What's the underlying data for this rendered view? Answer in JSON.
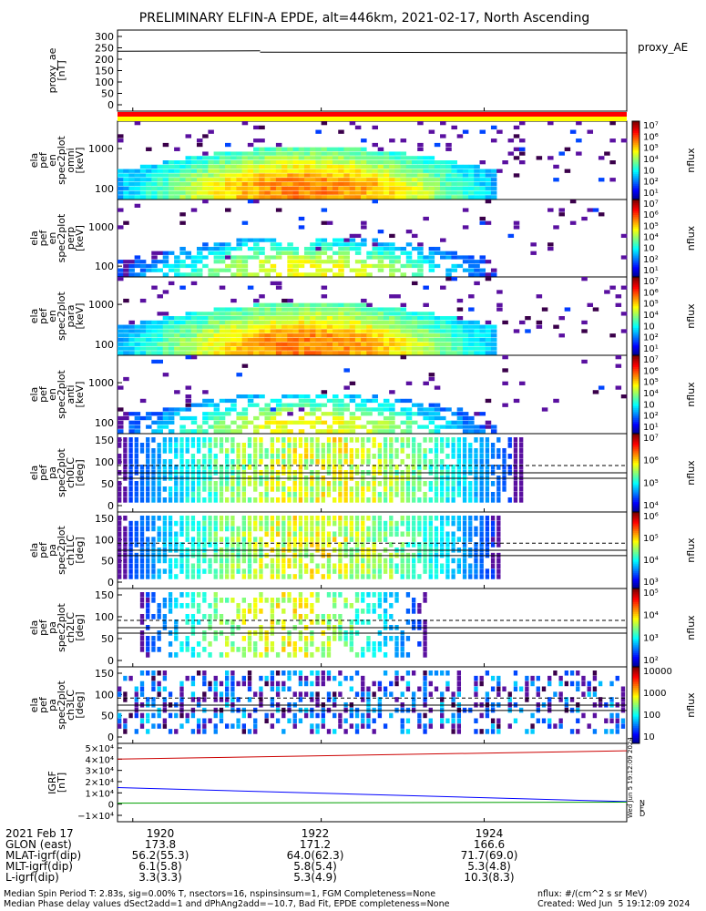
{
  "title": "PRELIMINARY ELFIN-A EPDE, alt=446km, 2021-02-17, North Ascending",
  "colors": {
    "ae_line": "#000000",
    "red_bar": "#ff0000",
    "yellow_bar": "#ffff00",
    "igrf_bx": "#0000ff",
    "igrf_by": "#00a000",
    "igrf_bz": "#cc0000"
  },
  "panels": [
    {
      "id": "proxy_ae",
      "ylabel": [
        "proxy_ae",
        "[nT]"
      ],
      "yticks": [
        "300",
        "250",
        "200",
        "150",
        "100",
        "50",
        "0"
      ],
      "right_label": "proxy_AE"
    },
    {
      "id": "en_omni",
      "ylabel": [
        "ela",
        "pef",
        "en",
        "spec2plot",
        "omni",
        "[keV]"
      ],
      "yticks": [
        "1000",
        "100"
      ],
      "cbar_ticks": [
        "10⁷",
        "10⁶",
        "10⁵",
        "10⁴",
        "10⁳",
        "10²",
        "10¹"
      ],
      "cbar_label": "nflux"
    },
    {
      "id": "en_perp",
      "ylabel": [
        "ela",
        "pef",
        "en",
        "spec2plot",
        "perp",
        "[keV]"
      ],
      "yticks": [
        "1000",
        "100"
      ],
      "cbar_ticks": [
        "10⁷",
        "10⁶",
        "10⁵",
        "10⁴",
        "10⁳",
        "10²",
        "10¹"
      ],
      "cbar_label": "nflux"
    },
    {
      "id": "en_para",
      "ylabel": [
        "ela",
        "pef",
        "en",
        "spec2plot",
        "para",
        "[keV]"
      ],
      "yticks": [
        "1000",
        "100"
      ],
      "cbar_ticks": [
        "10⁷",
        "10⁶",
        "10⁵",
        "10⁴",
        "10⁳",
        "10²",
        "10¹"
      ],
      "cbar_label": "nflux"
    },
    {
      "id": "en_anti",
      "ylabel": [
        "ela",
        "pef",
        "en",
        "spec2plot",
        "anti",
        "[keV]"
      ],
      "yticks": [
        "1000",
        "100"
      ],
      "cbar_ticks": [
        "10⁷",
        "10⁶",
        "10⁵",
        "10⁴",
        "10⁳",
        "10²",
        "10¹"
      ],
      "cbar_label": "nflux"
    },
    {
      "id": "pa_ch0",
      "ylabel": [
        "ela",
        "pef",
        "pa",
        "spec2plot",
        "ch0LC",
        "[deg]"
      ],
      "yticks": [
        "150",
        "100",
        "50",
        "0"
      ],
      "cbar_ticks": [
        "10⁷",
        "10⁶",
        "10⁵",
        "10⁴"
      ],
      "cbar_label": "nflux"
    },
    {
      "id": "pa_ch1",
      "ylabel": [
        "ela",
        "pef",
        "pa",
        "spec2plot",
        "ch1LC",
        "[deg]"
      ],
      "yticks": [
        "150",
        "100",
        "50",
        "0"
      ],
      "cbar_ticks": [
        "10⁶",
        "10⁵",
        "10⁴",
        "10³"
      ],
      "cbar_label": "nflux"
    },
    {
      "id": "pa_ch2",
      "ylabel": [
        "ela",
        "pef",
        "pa",
        "spec2plot",
        "ch2LC",
        "[deg]"
      ],
      "yticks": [
        "150",
        "100",
        "50",
        "0"
      ],
      "cbar_ticks": [
        "10⁵",
        "10⁴",
        "10³",
        "10²"
      ],
      "cbar_label": "nflux"
    },
    {
      "id": "pa_ch3",
      "ylabel": [
        "ela",
        "pef",
        "pa",
        "spec2plot",
        "ch3LC",
        "[deg]"
      ],
      "yticks": [
        "150",
        "100",
        "50",
        "0"
      ],
      "cbar_ticks": [
        "10000",
        "1000",
        "100",
        "10"
      ],
      "cbar_label": "nflux"
    },
    {
      "id": "igrf",
      "ylabel": [
        "IGRF",
        "[nT]"
      ],
      "yticks": [
        "5×10⁴",
        "4×10⁴",
        "3×10⁴",
        "2×10⁴",
        "1×10⁴",
        "0",
        "−1×10⁴"
      ],
      "legend": [
        "N",
        "E",
        "D"
      ],
      "stamp": "Wed Jun  5 19:12:09 2024"
    }
  ],
  "xaxis": {
    "ticks": [
      "1920",
      "1922",
      "1924"
    ],
    "rows": [
      {
        "label": "2021 Feb 17",
        "values": [
          "1920",
          "1922",
          "1924"
        ]
      },
      {
        "label": "GLON (east)",
        "values": [
          "173.8",
          "171.2",
          "166.6"
        ]
      },
      {
        "label": "MLAT-igrf(dip)",
        "values": [
          "56.2(55.3)",
          "64.0(62.3)",
          "71.7(69.0)"
        ]
      },
      {
        "label": "MLT-igrf(dip)",
        "values": [
          "6.1(5.8)",
          "5.8(5.4)",
          "5.3(4.8)"
        ]
      },
      {
        "label": "L-igrf(dip)",
        "values": [
          "3.3(3.3)",
          "5.3(4.9)",
          "10.3(8.3)"
        ]
      }
    ]
  },
  "footer": {
    "line1_left": "Median Spin Period T: 2.83s, sig=0.00% T, nsectors=16, nspinsinsum=1, FGM Completeness=None",
    "line2_left": "Median Phase delay values dSect2add=1 and dPhAng2add=−10.7, Bad Fit, EPDE completeness=None",
    "line1_right": "nflux: #/(cm^2 s sr MeV)",
    "line2_right": "Created: Wed Jun  5 19:12:09 2024"
  },
  "chart_data": {
    "type": "heatmap",
    "title": "PRELIMINARY ELFIN-A EPDE, alt=446km, 2021-02-17, North Ascending",
    "x_ticks": [
      "1920",
      "1922",
      "1924"
    ],
    "proxy_ae": {
      "type": "line",
      "ylabel": "proxy_ae [nT]",
      "ylim": [
        0,
        300
      ],
      "x": [
        "start",
        "end"
      ],
      "values": [
        235,
        228
      ]
    },
    "spectrograms_energy": {
      "ylabel": "[keV]",
      "yscale": "log",
      "ylim": [
        60,
        7000
      ],
      "channels": [
        "omni",
        "perp",
        "para",
        "anti"
      ]
    },
    "spectrograms_pitch_angle": {
      "ylabel": "[deg]",
      "ylim": [
        0,
        180
      ],
      "channels": [
        "ch0LC",
        "ch1LC",
        "ch2LC",
        "ch3LC"
      ]
    },
    "igrf": {
      "type": "line",
      "ylabel": "IGRF [nT]",
      "ylim": [
        -15000,
        50000
      ],
      "series": [
        {
          "name": "D",
          "values": [
            41000,
            49000
          ]
        },
        {
          "name": "N",
          "values": [
            13500,
            0
          ]
        },
        {
          "name": "E",
          "values": [
            -1500,
            -500
          ]
        }
      ]
    }
  }
}
